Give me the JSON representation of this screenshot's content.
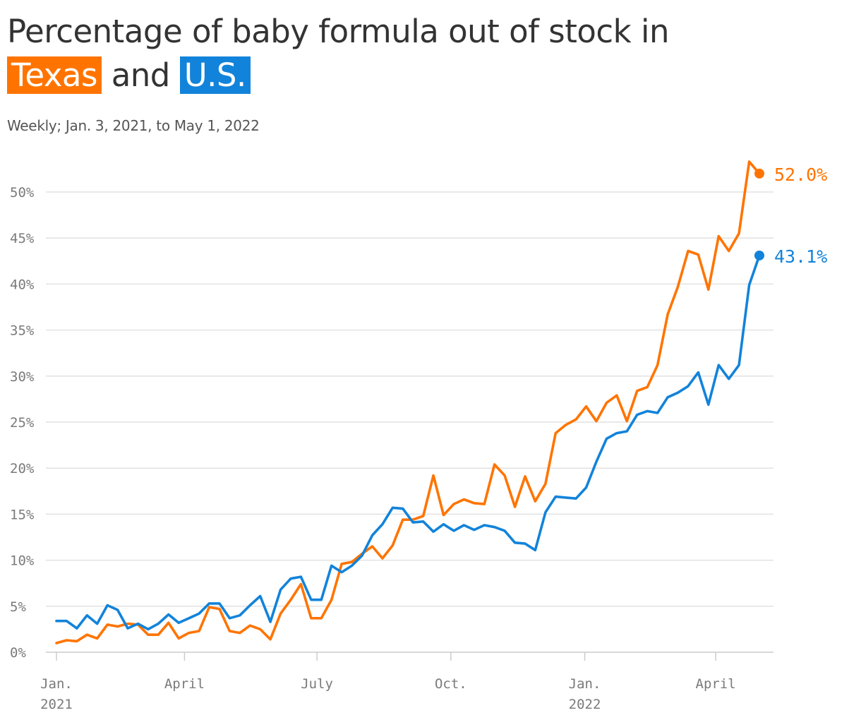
{
  "title": {
    "prefix": "Percentage of baby formula out of stock in",
    "texas": "Texas",
    "and": "and",
    "us": "U.S."
  },
  "subtitle": "Weekly; Jan. 3, 2021, to May 1, 2022",
  "colors": {
    "texas": "#ff7400",
    "us": "#1283da",
    "grid": "#e2e2e2",
    "axis": "#cccccc"
  },
  "chart_data": {
    "type": "line",
    "title": "Percentage of baby formula out of stock in Texas and U.S.",
    "subtitle": "Weekly; Jan. 3, 2021, to May 1, 2022",
    "x_start": "2021-01-03",
    "x_end": "2022-05-01",
    "x_step_days": 7,
    "ylim": [
      0,
      52
    ],
    "y_ticks": [
      0,
      5,
      10,
      15,
      20,
      25,
      30,
      35,
      40,
      45,
      50
    ],
    "y_tick_labels": [
      "0%",
      "5%",
      "10%",
      "15%",
      "20%",
      "25%",
      "30%",
      "35%",
      "40%",
      "45%",
      "50%"
    ],
    "x_ticks": [
      {
        "date": "2021-01-01",
        "label": "Jan.",
        "label2": "2021"
      },
      {
        "date": "2021-04-01",
        "label": "April",
        "label2": ""
      },
      {
        "date": "2021-07-01",
        "label": "July",
        "label2": ""
      },
      {
        "date": "2021-10-01",
        "label": "Oct.",
        "label2": ""
      },
      {
        "date": "2022-01-01",
        "label": "Jan.",
        "label2": "2022"
      },
      {
        "date": "2022-04-01",
        "label": "April",
        "label2": ""
      }
    ],
    "grid": true,
    "legend": "none",
    "series": [
      {
        "name": "Texas",
        "color": "#ff7400",
        "end_label": "52.0%",
        "values": [
          1.0,
          1.3,
          1.2,
          1.9,
          1.5,
          3.0,
          2.8,
          3.1,
          3.0,
          1.9,
          1.9,
          3.2,
          1.5,
          2.1,
          2.3,
          4.9,
          4.7,
          2.3,
          2.1,
          2.9,
          2.5,
          1.4,
          4.2,
          5.7,
          7.4,
          3.7,
          3.7,
          5.7,
          9.6,
          9.8,
          10.7,
          11.5,
          10.2,
          11.6,
          14.4,
          14.4,
          14.8,
          19.2,
          14.9,
          16.1,
          16.6,
          16.2,
          16.1,
          20.4,
          19.2,
          15.8,
          19.1,
          16.4,
          18.3,
          23.8,
          24.7,
          25.3,
          26.7,
          25.1,
          27.1,
          27.9,
          25.1,
          28.4,
          28.8,
          31.2,
          36.7,
          39.7,
          43.6,
          43.2,
          39.4,
          45.2,
          43.6,
          45.5,
          53.3,
          52.0
        ]
      },
      {
        "name": "U.S.",
        "color": "#1283da",
        "end_label": "43.1%",
        "values": [
          3.4,
          3.4,
          2.6,
          4.0,
          3.1,
          5.1,
          4.6,
          2.6,
          3.1,
          2.5,
          3.1,
          4.1,
          3.2,
          3.7,
          4.2,
          5.3,
          5.3,
          3.7,
          4.0,
          5.1,
          6.1,
          3.3,
          6.8,
          8.0,
          8.2,
          5.7,
          5.7,
          9.4,
          8.7,
          9.4,
          10.5,
          12.7,
          13.9,
          15.7,
          15.6,
          14.1,
          14.2,
          13.1,
          13.9,
          13.2,
          13.8,
          13.3,
          13.8,
          13.6,
          13.2,
          11.9,
          11.8,
          11.1,
          15.2,
          16.9,
          16.8,
          16.7,
          17.9,
          20.7,
          23.2,
          23.8,
          24.0,
          25.8,
          26.2,
          26.0,
          27.7,
          28.2,
          28.9,
          30.4,
          26.9,
          31.2,
          29.7,
          31.2,
          39.9,
          43.1
        ]
      }
    ]
  }
}
